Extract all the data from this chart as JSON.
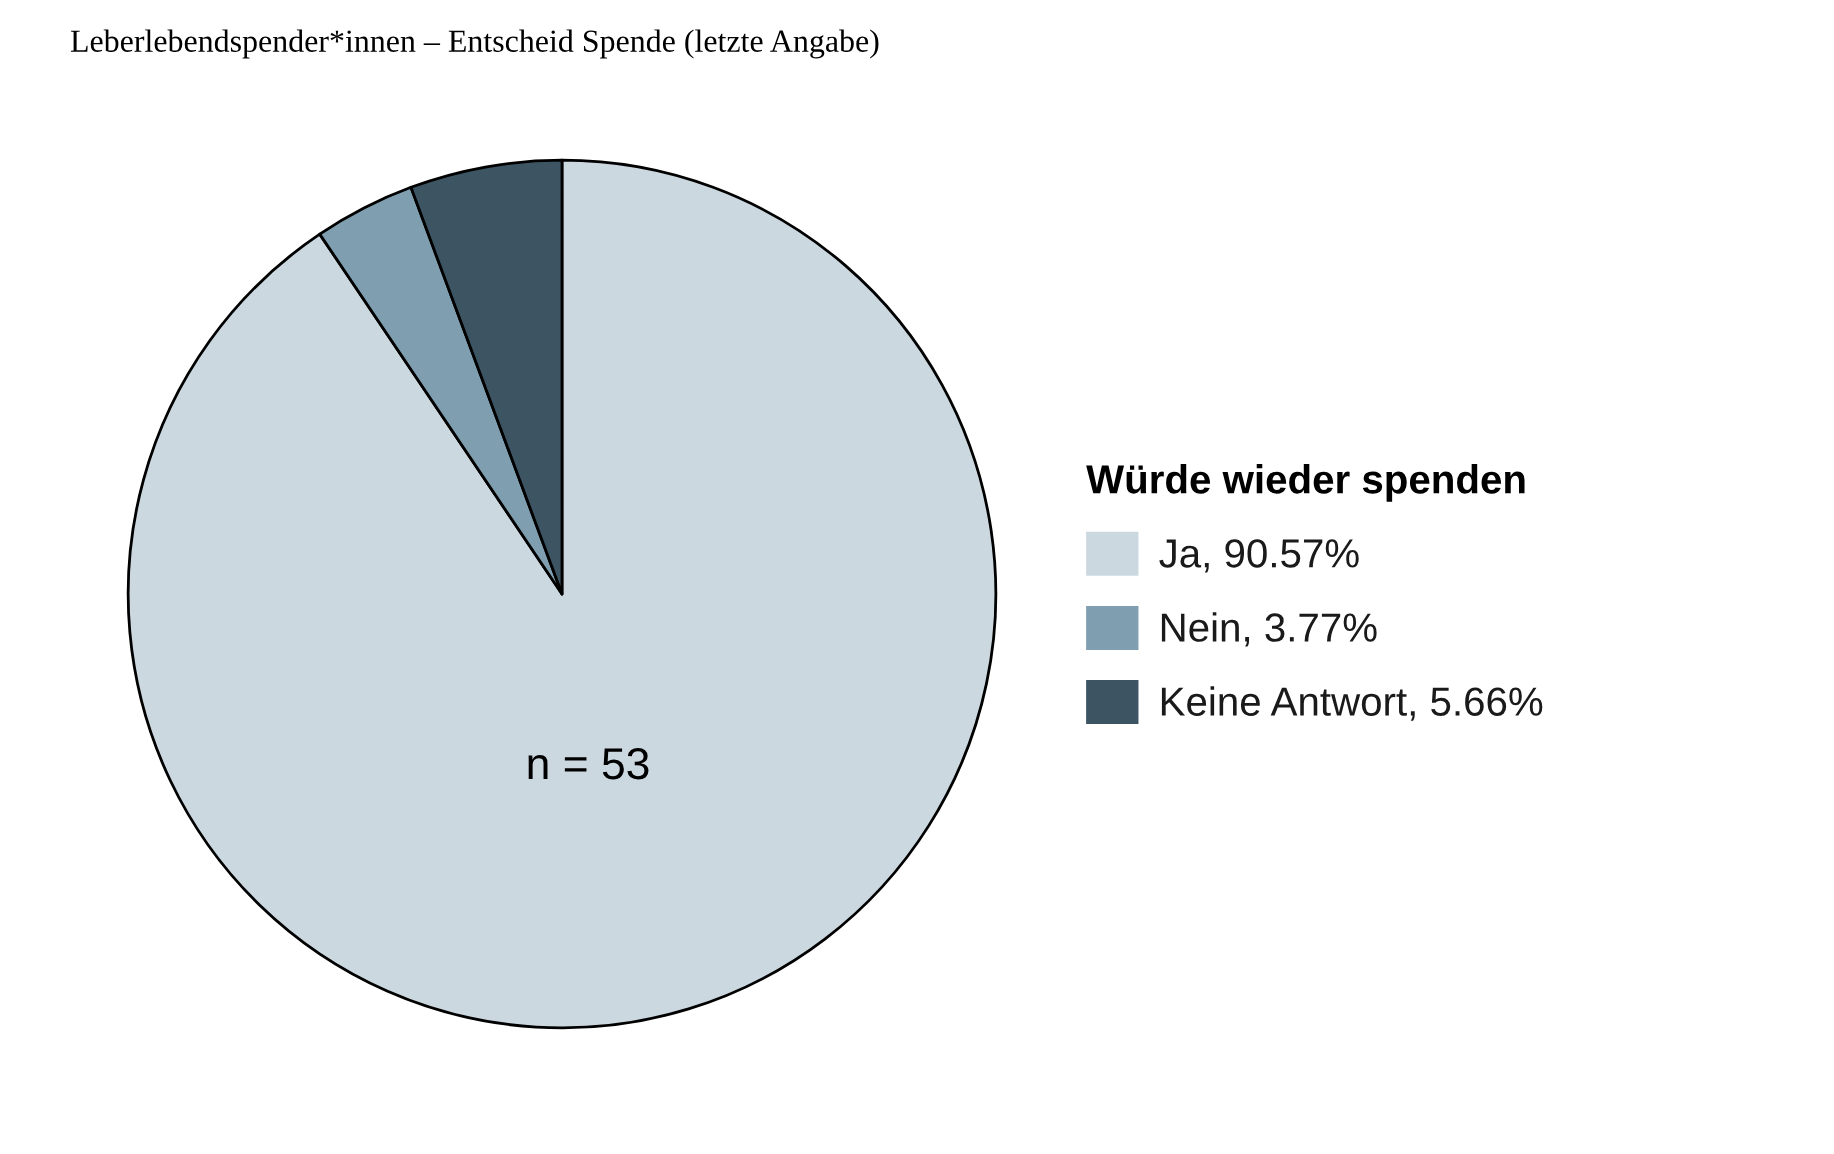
{
  "chart_data": {
    "type": "pie",
    "title": "Leberlebendspender*innen – Entscheid Spende (letzte Angabe)",
    "categories": [
      "Ja, 90.57%",
      "Nein, 3.77%",
      "Keine Antwort, 5.66%"
    ],
    "values": [
      90.57,
      3.77,
      5.66
    ],
    "colors": [
      "#ccd8e0",
      "#7f9fb0",
      "#3d5563"
    ],
    "legend_title": "Würde wieder spenden",
    "legend": "right",
    "annotations": [
      "n = 53"
    ]
  }
}
